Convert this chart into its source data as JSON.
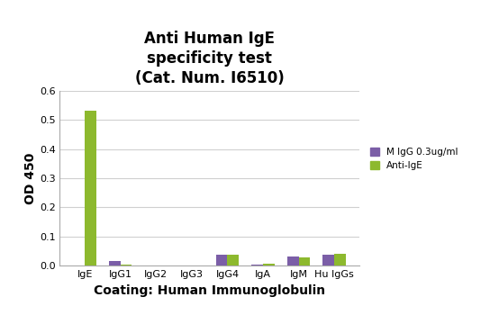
{
  "title_line1": "Anti Human IgE",
  "title_line2": "specificity test",
  "title_line3": "(Cat. Num. I6510)",
  "xlabel": "Coating: Human Immunoglobulin",
  "ylabel": "OD 450",
  "categories": [
    "IgE",
    "IgG1",
    "IgG2",
    "IgG3",
    "IgG4",
    "IgA",
    "IgM",
    "Hu IgGs"
  ],
  "series_MIgG": [
    0.0,
    0.016,
    0.0,
    0.0,
    0.038,
    0.004,
    0.03,
    0.038
  ],
  "series_AntiIgE": [
    0.53,
    0.005,
    0.0,
    0.0,
    0.037,
    0.008,
    0.028,
    0.042
  ],
  "color_MIgG": "#7B5EA7",
  "color_AntiIgE": "#8DB92E",
  "legend_MIgG": "M IgG 0.3ug/ml",
  "legend_AntiIgE": "Anti-IgE",
  "ylim": [
    0,
    0.6
  ],
  "yticks": [
    0.0,
    0.1,
    0.2,
    0.3,
    0.4,
    0.5,
    0.6
  ],
  "background_color": "#ffffff",
  "plot_bg_color": "#ffffff",
  "grid_color": "#d0d0d0",
  "bar_width": 0.32,
  "title_fontsize": 12,
  "axis_label_fontsize": 10,
  "tick_fontsize": 8,
  "legend_fontsize": 7.5
}
